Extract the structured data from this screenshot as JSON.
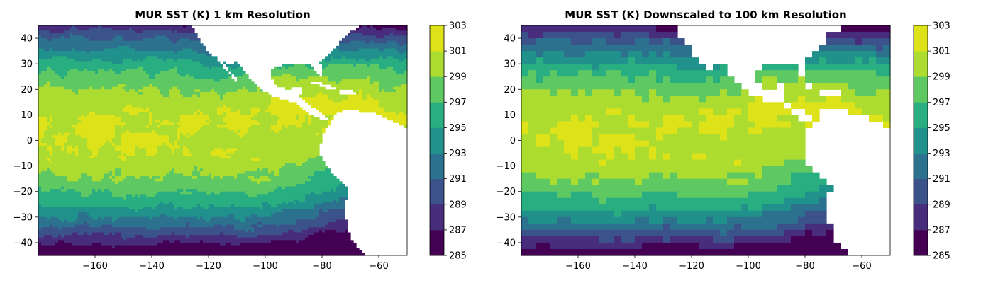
{
  "palette": [
    "#440154",
    "#472d7b",
    "#3b528b",
    "#2c728e",
    "#21918c",
    "#28ae80",
    "#5ec962",
    "#addc30",
    "#dde318"
  ],
  "ocean_color": "#ffffff",
  "chart_data": [
    {
      "type": "heatmap",
      "title": "MUR SST (K) 1 km Resolution",
      "xlim": [
        -180,
        -50
      ],
      "ylim": [
        -45,
        45
      ],
      "xticks": [
        -160,
        -140,
        -120,
        -100,
        -80,
        -60
      ],
      "xtick_labels": [
        "−160",
        "−140",
        "−120",
        "−100",
        "−80",
        "−60"
      ],
      "yticks": [
        40,
        30,
        20,
        10,
        0,
        -10,
        -20,
        -30,
        -40
      ],
      "ytick_labels": [
        "40",
        "30",
        "20",
        "10",
        "0",
        "−10",
        "−20",
        "−30",
        "−40"
      ],
      "colorbar": {
        "levels": [
          285,
          287,
          289,
          291,
          293,
          295,
          297,
          299,
          301,
          303
        ],
        "tick_labels": [
          "285",
          "287",
          "289",
          "291",
          "293",
          "295",
          "297",
          "299",
          "301",
          "303"
        ],
        "units": "K"
      },
      "resolution_deg": 1
    },
    {
      "type": "heatmap",
      "title": "MUR SST (K) Downscaled to 100 km Resolution",
      "xlim": [
        -180,
        -50
      ],
      "ylim": [
        -45,
        45
      ],
      "xticks": [
        -160,
        -140,
        -120,
        -100,
        -80,
        -60
      ],
      "xtick_labels": [
        "−160",
        "−140",
        "−120",
        "−100",
        "−80",
        "−60"
      ],
      "yticks": [
        40,
        30,
        20,
        10,
        0,
        -10,
        -20,
        -30,
        -40
      ],
      "ytick_labels": [
        "40",
        "30",
        "20",
        "10",
        "0",
        "−10",
        "−20",
        "−30",
        "−40"
      ],
      "colorbar": {
        "levels": [
          285,
          287,
          289,
          291,
          293,
          295,
          297,
          299,
          301,
          303
        ],
        "tick_labels": [
          "285",
          "287",
          "289",
          "291",
          "293",
          "295",
          "297",
          "299",
          "301",
          "303"
        ],
        "units": "K"
      },
      "resolution_deg": 2.5
    }
  ]
}
